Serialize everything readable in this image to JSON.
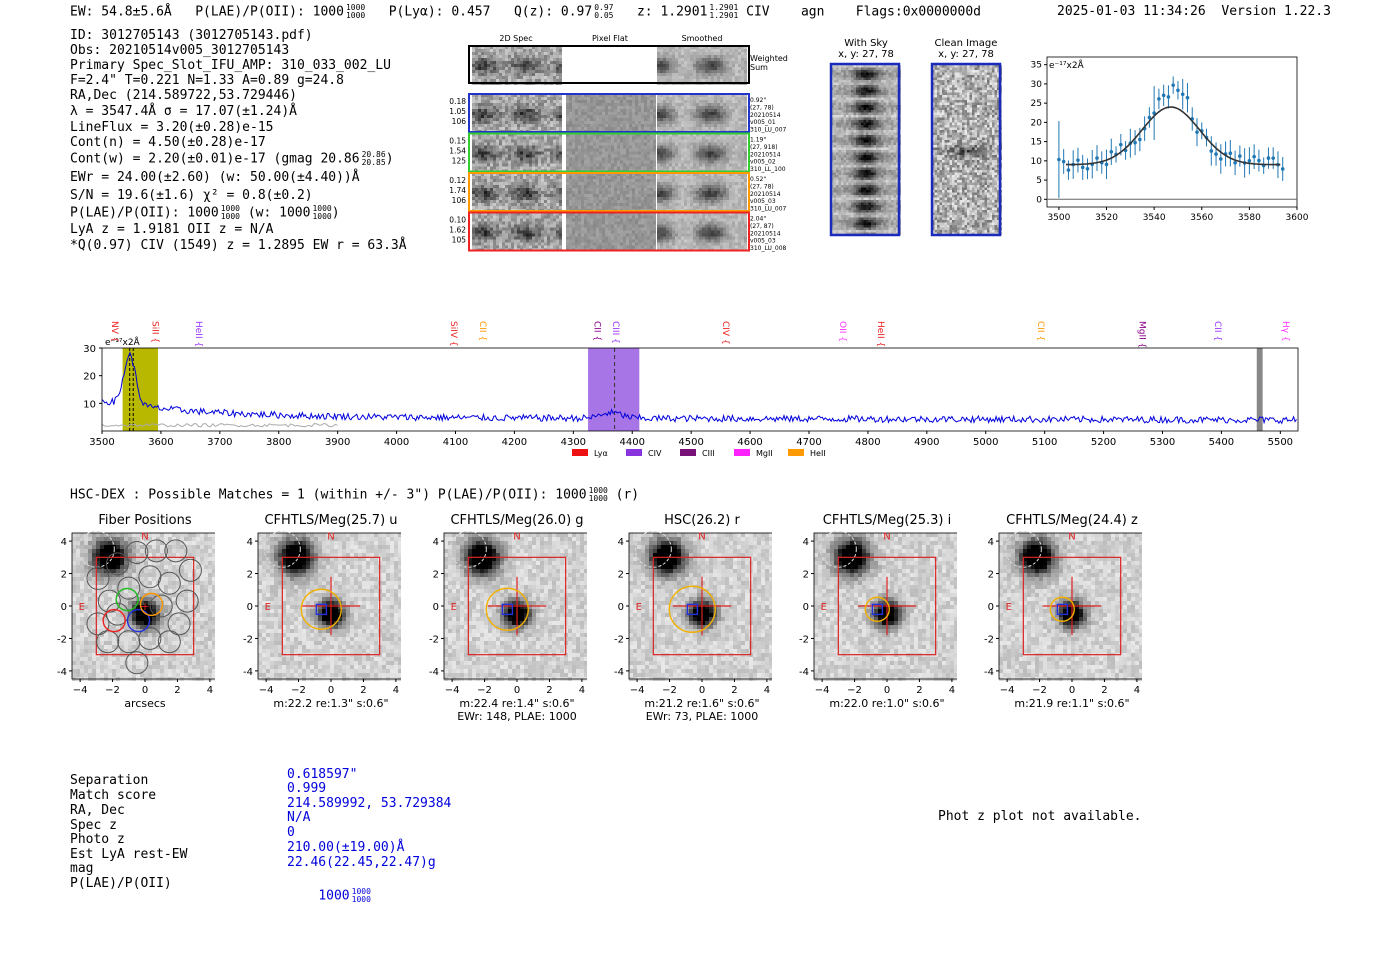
{
  "header": {
    "ew": "EW: 54.8±5.6Å",
    "plae_label": "P(LAE)/P(OII): 1000",
    "plae_hi": "1000",
    "plae_lo": "1000",
    "plya": "P(Lyα): 0.457",
    "qz_label": "Q(z): 0.97",
    "qz_hi": "0.97",
    "qz_lo": "0.05",
    "z_label": "z: 1.2901",
    "z_hi": "1.2901",
    "z_lo": "1.2901",
    "z_line": "CIV",
    "class": "agn",
    "flags": "Flags:0x0000000d",
    "datetime": "2025-01-03 11:34:26",
    "version": "Version 1.22.3"
  },
  "info": {
    "id": "ID: 3012705143 (3012705143.pdf)",
    "obs": "Obs: 20210514v005_3012705143",
    "primary": "Primary Spec_Slot_IFU_AMP: 310_033_002_LU",
    "fiber": "F=2.4\"  T=0.221  N=1.33  A=0.89  g=24.8",
    "radec": "RA,Dec (214.589722,53.729446)",
    "lambda": "λ = 3547.4Å  σ = 17.07(±1.24)Å",
    "lineflux": "LineFlux = 3.20(±0.28)e-15",
    "contn": "Cont(n) = 4.50(±0.28)e-17",
    "contw": "Cont(w) = 2.20(±0.01)e-17 (gmag 20.86",
    "contw_hi": "20.86",
    "contw_lo": "20.85",
    "contw_end": ")",
    "ewr": "EWr = 24.00(±2.60) (w: 50.00(±4.40))Å",
    "sn": "S/N = 19.6(±1.6)  χ² = 0.8(±0.2)",
    "plae": "P(LAE)/P(OII): 1000",
    "plae_hi": "1000",
    "plae_lo": "1000",
    "plae_w": "(w: 1000",
    "plae_w_hi": "1000",
    "plae_w_lo": "1000",
    "plae_end": ")",
    "lya": "LyA z = 1.9181  OII z = N/A",
    "q": "*Q(0.97) CIV (1549) z = 1.2895  EW r = 63.3Å"
  },
  "spec2d": {
    "col_headers": [
      "2D Spec",
      "Pixel Flat",
      "Smoothed"
    ],
    "sum_label": "Weighted Sum",
    "rows": [
      {
        "left": [
          "0.18",
          "1.05",
          "106"
        ],
        "right": [
          "0.92\"",
          "(27, 78)",
          "20210514",
          "v005_01",
          "310_LU_007"
        ],
        "color": "#2233cc"
      },
      {
        "left": [
          "0.15",
          "1.54",
          "125"
        ],
        "right": [
          "1.19\"",
          "(27, 918)",
          "20210514",
          "v005_02",
          "310_LL_100"
        ],
        "color": "#33cc33"
      },
      {
        "left": [
          "0.12",
          "1.74",
          "106"
        ],
        "right": [
          "0.52\"",
          "(27, 78)",
          "20210514",
          "v005_03",
          "310_LU_007"
        ],
        "color": "#ff9900"
      },
      {
        "left": [
          "0.10",
          "1.62",
          "105"
        ],
        "right": [
          "2.04\"",
          "(27, 87)",
          "20210514",
          "v005_03",
          "310_LU_008"
        ],
        "color": "#ee2222"
      }
    ]
  },
  "sky": {
    "with_title": "With Sky",
    "with_xy": "x, y: 27, 78",
    "clean_title": "Clean Image",
    "clean_xy": "x, y: 27, 78"
  },
  "zoom_plot": {
    "ylabel": "e⁻¹⁷x2Å",
    "xlim": [
      3495,
      3600
    ],
    "ylim": [
      -2,
      37
    ],
    "xticks": [
      3500,
      3520,
      3540,
      3560,
      3580,
      3600
    ],
    "yticks": [
      0,
      5,
      10,
      15,
      20,
      25,
      30,
      35
    ]
  },
  "full_plot": {
    "ylabel": "e⁻¹⁷x2Å",
    "xlim": [
      3500,
      5530
    ],
    "ylim": [
      0,
      30
    ],
    "xticks": [
      3500,
      3600,
      3700,
      3800,
      3900,
      4000,
      4100,
      4200,
      4300,
      4400,
      4500,
      4600,
      4700,
      4800,
      4900,
      5000,
      5100,
      5200,
      5300,
      5400,
      5500
    ],
    "yticks": [
      10,
      20,
      30
    ],
    "lines": [
      {
        "name": "NV",
        "wave": 3521,
        "color": "#ee2222"
      },
      {
        "name": "SiII",
        "wave": 3590,
        "color": "#ee2222"
      },
      {
        "name": "HeII",
        "wave": 3664,
        "color": "#9933ff"
      },
      {
        "name": "SiIV",
        "wave": 4097,
        "color": "#ee2222"
      },
      {
        "name": "CII",
        "wave": 4146,
        "color": "#ff9900"
      },
      {
        "name": "CII",
        "wave": 4340,
        "color": "#880088"
      },
      {
        "name": "CIII",
        "wave": 4372,
        "color": "#9933ff"
      },
      {
        "name": "CIV",
        "wave": 4558,
        "color": "#ee2222"
      },
      {
        "name": "OII",
        "wave": 4757,
        "color": "#ff33ff"
      },
      {
        "name": "HeII",
        "wave": 4821,
        "color": "#ee2222"
      },
      {
        "name": "CII",
        "wave": 5093,
        "color": "#ff9900"
      },
      {
        "name": "MgII",
        "wave": 5265,
        "color": "#880088"
      },
      {
        "name": "CII",
        "wave": 5393,
        "color": "#9933ff"
      },
      {
        "name": "Hγ",
        "wave": 5509,
        "color": "#ff33ff"
      }
    ],
    "legend": [
      {
        "label": "Lyα",
        "color": "#ee1111"
      },
      {
        "label": "CIV",
        "color": "#8833dd"
      },
      {
        "label": "CIII",
        "color": "#771177"
      },
      {
        "label": "MgII",
        "color": "#ff22ff"
      },
      {
        "label": "HeII",
        "color": "#ff9900"
      }
    ]
  },
  "hsc": {
    "title": "HSC-DEX : Possible Matches = 1 (within +/- 3\")  P(LAE)/P(OII): 1000",
    "plae_hi": "1000",
    "plae_lo": "1000",
    "band": "(r)"
  },
  "cutouts": [
    {
      "title": "Fiber Positions",
      "cap1": "arcsecs",
      "cap2": ""
    },
    {
      "title": "CFHTLS/Meg(25.7) u",
      "cap1": "m:22.2  re:1.3\"  s:0.6\"",
      "cap2": ""
    },
    {
      "title": "CFHTLS/Meg(26.0) g",
      "cap1": "m:22.4  re:1.4\"  s:0.6\"",
      "cap2": "EWr: 148, PLAE: 1000"
    },
    {
      "title": "HSC(26.2) r",
      "cap1": "m:21.2  re:1.6\"  s:0.6\"",
      "cap2": "EWr: 73, PLAE: 1000"
    },
    {
      "title": "CFHTLS/Meg(25.3) i",
      "cap1": "m:22.0  re:1.0\"  s:0.6\"",
      "cap2": ""
    },
    {
      "title": "CFHTLS/Meg(24.4) z",
      "cap1": "m:21.9  re:1.1\"  s:0.6\"",
      "cap2": ""
    }
  ],
  "cutout_axes": {
    "ticks": [
      "−4",
      "−2",
      "0",
      "2",
      "4"
    ],
    "north": "N",
    "east": "E"
  },
  "match_table": {
    "labels": [
      "Separation",
      "Match score",
      "RA, Dec",
      "Spec z",
      "Photo z",
      "Est LyA rest-EW",
      "mag",
      "P(LAE)/P(OII)"
    ],
    "values": [
      "0.618597\"",
      "0.999",
      "214.589992, 53.729384",
      "N/A",
      "0",
      "210.00(±19.00)Å",
      "22.46(22.45,22.47)g",
      "1000"
    ],
    "plae_hi": "1000",
    "plae_lo": "1000"
  },
  "photz": "Phot z plot not available."
}
